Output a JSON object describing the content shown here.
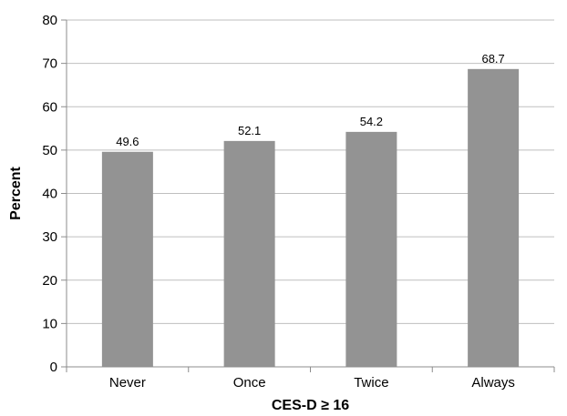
{
  "chart_data": {
    "type": "bar",
    "categories": [
      "Never",
      "Once",
      "Twice",
      "Always"
    ],
    "values": [
      49.6,
      52.1,
      54.2,
      68.7
    ],
    "data_labels": [
      "49.6",
      "52.1",
      "54.2",
      "68.7"
    ],
    "xlabel": "CES-D ≥ 16",
    "ylabel": "Percent",
    "ylim": [
      0,
      80
    ],
    "yticks": [
      0,
      10,
      20,
      30,
      40,
      50,
      60,
      70,
      80
    ],
    "grid": "horizontal",
    "bar_color": "#939393",
    "grid_color": "#bfbfbf",
    "axis_color": "#8c8c8c"
  }
}
